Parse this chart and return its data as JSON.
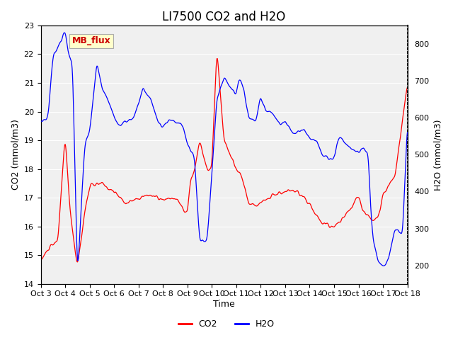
{
  "title": "LI7500 CO2 and H2O",
  "xlabel": "Time",
  "ylabel_left": "CO2 (mmol/m3)",
  "ylabel_right": "H2O (mmol/m3)",
  "ylim_left": [
    14.0,
    23.0
  ],
  "ylim_right": [
    150,
    850
  ],
  "xtick_labels": [
    "Oct 3",
    "Oct 4",
    "Oct 5",
    "Oct 6",
    "Oct 7",
    "Oct 8",
    "Oct 9",
    "Oct 10",
    "Oct 11",
    "Oct 12",
    "Oct 13",
    "Oct 14",
    "Oct 15",
    "Oct 16",
    "Oct 17",
    "Oct 18"
  ],
  "annotation_text": "MB_flux",
  "annotation_color": "#cc0000",
  "annotation_bg": "#ffffcc",
  "line_co2_color": "red",
  "line_h2o_color": "blue",
  "legend_labels": [
    "CO2",
    "H2O"
  ],
  "bg_color": "#e8e8e8",
  "plot_bg_color": "#f0f0f0",
  "title_fontsize": 12,
  "label_fontsize": 9,
  "tick_fontsize": 8
}
